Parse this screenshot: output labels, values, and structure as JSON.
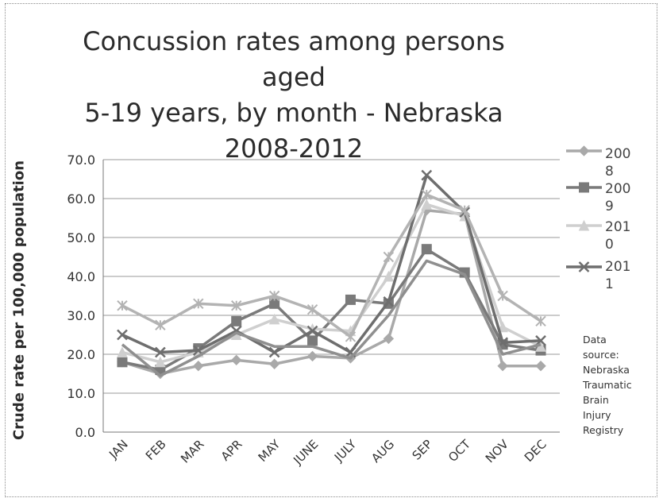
{
  "chart_data": {
    "type": "line",
    "title_lines": [
      "Concussion rates among persons aged",
      "5-19 years, by month - Nebraska",
      "2008-2012"
    ],
    "ylabel": "Crude rate per 100,000 population",
    "xlabel": "",
    "ylim": [
      0,
      70
    ],
    "yticks": [
      "0.0",
      "10.0",
      "20.0",
      "30.0",
      "40.0",
      "50.0",
      "60.0",
      "70.0"
    ],
    "grid": true,
    "legend_position": "right",
    "categories": [
      "JAN",
      "FEB",
      "MAR",
      "APR",
      "MAY",
      "JUNE",
      "JULY",
      "AUG",
      "SEP",
      "OCT",
      "NOV",
      "DEC"
    ],
    "series": [
      {
        "name": "2008",
        "legend_lines": [
          "200",
          "8"
        ],
        "marker": "diamond",
        "color": "#a9a9a9",
        "values": [
          18,
          15,
          17,
          18.5,
          17.5,
          19.5,
          19,
          24,
          57,
          56,
          17,
          17
        ]
      },
      {
        "name": "2009",
        "legend_lines": [
          "200",
          "9"
        ],
        "marker": "square",
        "color": "#7a7a7a",
        "values": [
          18,
          16,
          21.5,
          28.5,
          33,
          23.5,
          34,
          33,
          47,
          41,
          22.5,
          21
        ]
      },
      {
        "name": "2010",
        "legend_lines": [
          "201",
          "0"
        ],
        "marker": "triangle",
        "color": "#cfcfcf",
        "values": [
          20.5,
          18,
          20.5,
          25,
          29,
          26.5,
          26,
          40,
          58.5,
          55.5,
          27,
          22
        ]
      },
      {
        "name": "2011",
        "legend_lines": [
          "201",
          "1"
        ],
        "marker": "x",
        "color": "#6e6e6e",
        "values": [
          25,
          20.5,
          21,
          26,
          20.5,
          26,
          20.5,
          33.5,
          66,
          56.5,
          23,
          23.5
        ]
      },
      {
        "name": "",
        "marker": "star",
        "color": "#b3b3b3",
        "values": [
          32.5,
          27.5,
          33,
          32.5,
          35,
          31.5,
          24.5,
          45,
          61,
          57,
          35,
          28.5
        ]
      },
      {
        "name": "",
        "marker": "none",
        "color": "#8f8f8f",
        "values": [
          22.5,
          14.5,
          19.5,
          25.5,
          22,
          22,
          19,
          30,
          44,
          40.5,
          20,
          22.5
        ]
      }
    ],
    "annotation": [
      "Data",
      "source:",
      "Nebraska",
      "Traumatic",
      "Brain",
      "Injury",
      "Registry"
    ]
  }
}
